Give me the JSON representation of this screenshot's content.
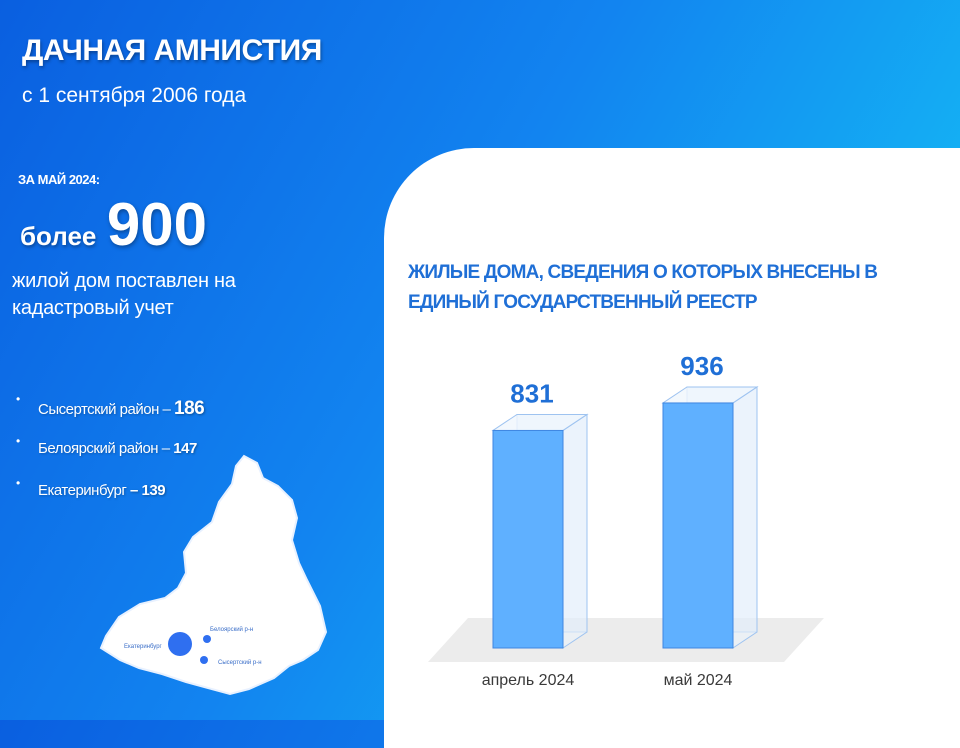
{
  "header": {
    "title": "ДАЧНАЯ АМНИСТИЯ",
    "subtitle": "с 1 сентября 2006 года"
  },
  "summary": {
    "period": "ЗА МАЙ 2024:",
    "prefix": "более",
    "number": "900",
    "description": "жилой дом поставлен на кадастровый учет"
  },
  "districts": [
    {
      "name": "Сысертский район – ",
      "value": "186"
    },
    {
      "name": "Белоярский район – ",
      "value": "147"
    },
    {
      "name": "Екатеринбург ",
      "value": "– 139"
    }
  ],
  "map_labels": {
    "ekb": "Екатеринбург",
    "beloyarsky": "Белоярский р-н",
    "sysertsky": "Сысертский р-н"
  },
  "colors": {
    "bg_start": "#0a5fe0",
    "bg_end": "#18c9f6",
    "accent": "#1f6fd6",
    "bar": "#5fb0ff"
  },
  "chart_data": {
    "type": "bar",
    "title": "ЖИЛЫЕ ДОМА, СВЕДЕНИЯ О КОТОРЫХ ВНЕСЕНЫ В ЕДИНЫЙ ГОСУДАРСТВЕННЫЙ РЕЕСТР",
    "categories": [
      "апрель 2024",
      "май 2024"
    ],
    "values": [
      831,
      936
    ],
    "style": "3d",
    "grid": false
  }
}
